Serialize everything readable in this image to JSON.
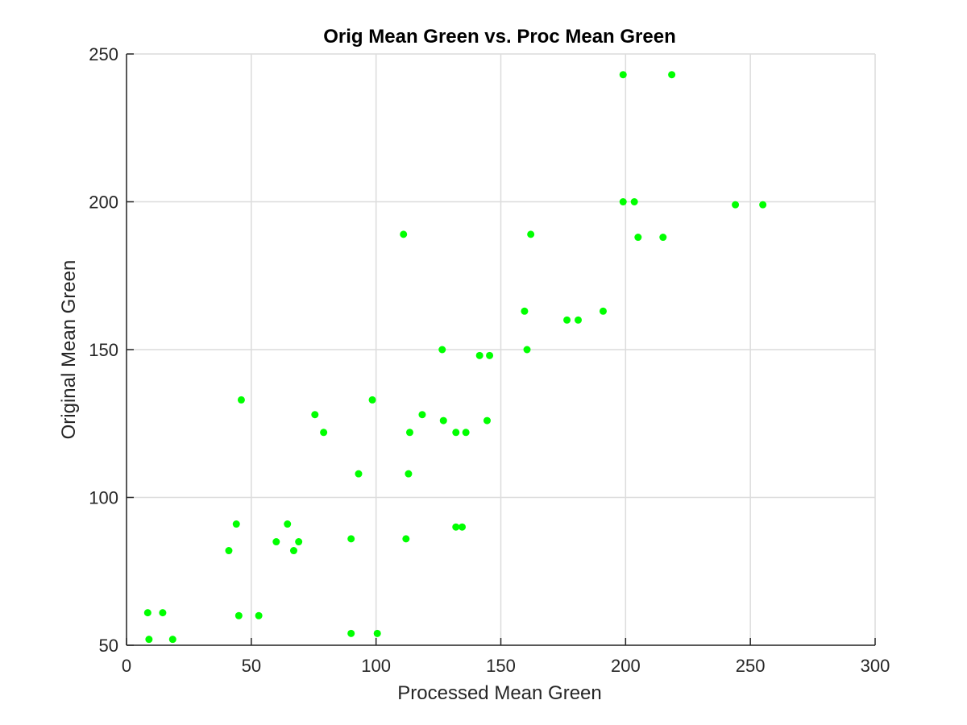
{
  "chart_data": {
    "type": "scatter",
    "title": "Orig Mean Green vs. Proc Mean Green",
    "xlabel": "Processed Mean Green",
    "ylabel": "Original Mean Green",
    "xlim": [
      0,
      300
    ],
    "ylim": [
      50,
      250
    ],
    "xticks": [
      "0",
      "50",
      "100",
      "150",
      "200",
      "250",
      "300"
    ],
    "yticks": [
      "50",
      "100",
      "150",
      "200",
      "250"
    ],
    "grid": true,
    "marker_color": "#00ff00",
    "series": [
      {
        "points": [
          [
            199,
            243
          ],
          [
            218.5,
            243
          ],
          [
            199,
            200
          ],
          [
            203.5,
            200
          ],
          [
            244,
            199
          ],
          [
            255,
            199
          ],
          [
            205,
            188
          ],
          [
            215,
            188
          ],
          [
            111,
            189
          ],
          [
            162,
            189
          ],
          [
            159.5,
            163
          ],
          [
            191,
            163
          ],
          [
            176.5,
            160
          ],
          [
            181,
            160
          ],
          [
            126.5,
            150
          ],
          [
            160.5,
            150
          ],
          [
            141.5,
            148
          ],
          [
            145.5,
            148
          ],
          [
            46,
            133
          ],
          [
            98.5,
            133
          ],
          [
            75.5,
            128
          ],
          [
            118.5,
            128
          ],
          [
            127,
            126
          ],
          [
            144.5,
            126
          ],
          [
            79,
            122
          ],
          [
            113.5,
            122
          ],
          [
            132,
            122
          ],
          [
            136,
            122
          ],
          [
            93,
            108
          ],
          [
            113,
            108
          ],
          [
            44,
            91
          ],
          [
            64.5,
            91
          ],
          [
            132,
            90
          ],
          [
            134.5,
            90
          ],
          [
            90,
            86
          ],
          [
            112,
            86
          ],
          [
            60,
            85
          ],
          [
            69,
            85
          ],
          [
            41,
            82
          ],
          [
            67,
            82
          ],
          [
            8.5,
            61
          ],
          [
            14.5,
            61
          ],
          [
            45,
            60
          ],
          [
            53,
            60
          ],
          [
            90,
            54
          ],
          [
            100.5,
            54
          ],
          [
            9,
            52
          ],
          [
            18.5,
            52
          ]
        ]
      }
    ]
  }
}
